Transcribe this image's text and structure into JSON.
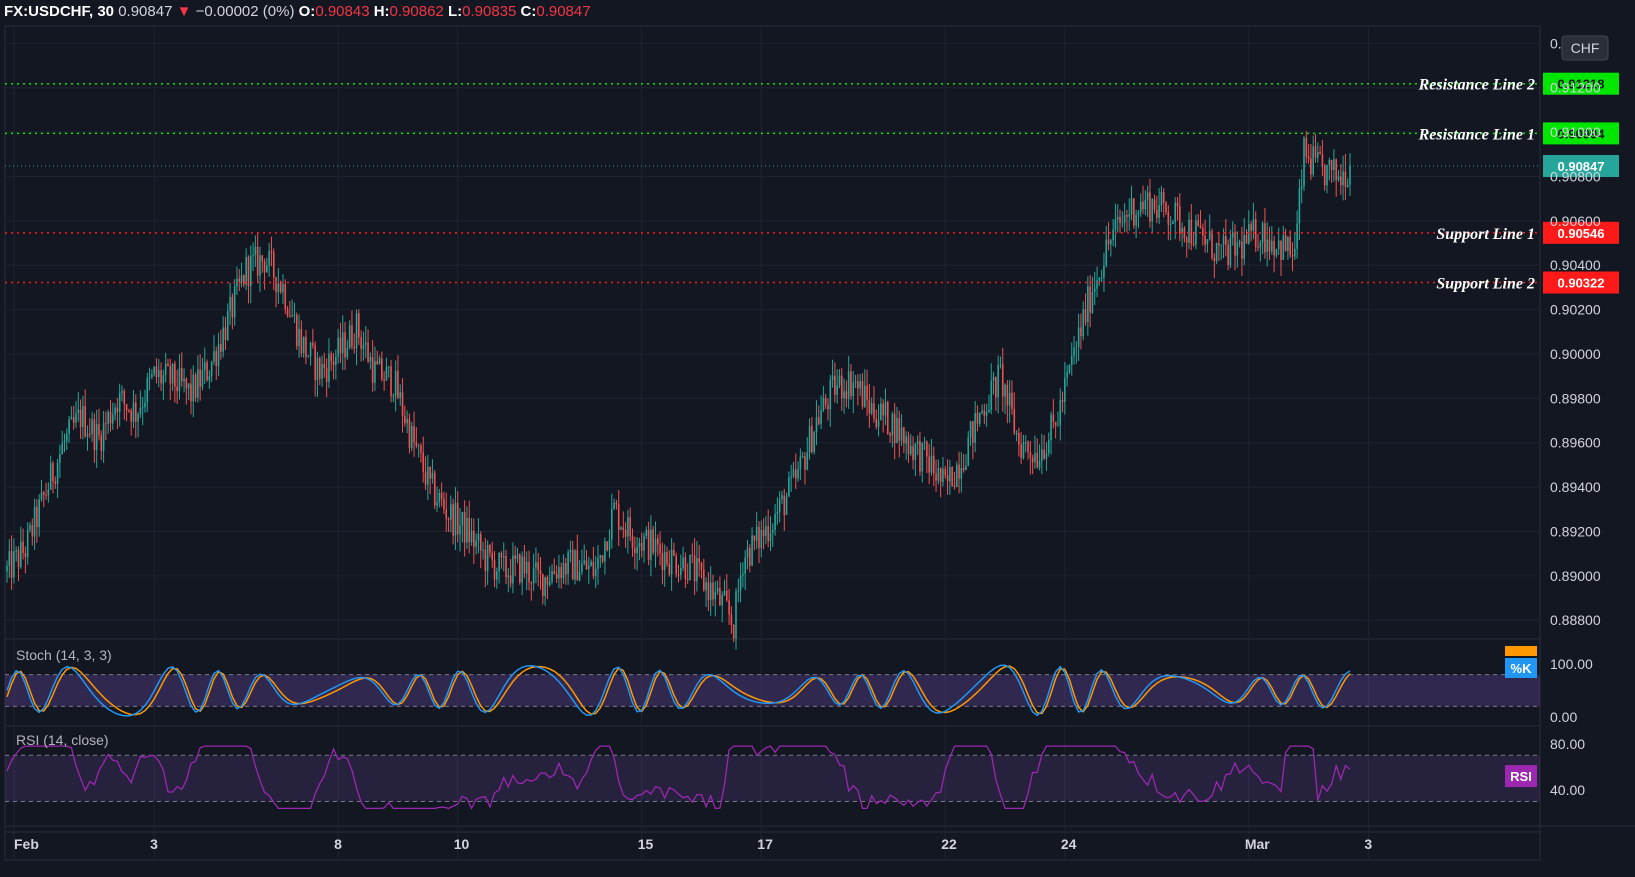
{
  "header": {
    "symbol": "FX:USDCHF, 30",
    "last": "0.90847",
    "arrow": "▼",
    "change": "−0.00002 (0%)",
    "o_label": "O:",
    "o": "0.90843",
    "h_label": "H:",
    "h": "0.90862",
    "l_label": "L:",
    "l": "0.90835",
    "c_label": "C:",
    "c": "0.90847"
  },
  "currency_badge": "CHF",
  "colors": {
    "up": "#26a69a",
    "down": "#ef5350",
    "resistance": "#00e600",
    "support": "#ff1a1a",
    "last": "#26a69a",
    "stoch_k": "#2196f3",
    "stoch_d": "#ff9800",
    "rsi": "#9c27b0"
  },
  "chart_data": [
    {
      "type": "candlestick",
      "title": "FX:USDCHF, 30",
      "y_ticks": [
        "0.91400",
        "0.91200",
        "0.91000",
        "0.90800",
        "0.90600",
        "0.90400",
        "0.90200",
        "0.90000",
        "0.89800",
        "0.89600",
        "0.89400",
        "0.89200",
        "0.89000",
        "0.88800"
      ],
      "ylim": [
        0.8872,
        0.9146
      ],
      "x_ticks": [
        "Feb",
        "3",
        "8",
        "10",
        "15",
        "17",
        "22",
        "24",
        "Mar",
        "3"
      ],
      "close_path": [
        [
          0,
          0.8902
        ],
        [
          2,
          0.8912
        ],
        [
          4,
          0.8935
        ],
        [
          6,
          0.8958
        ],
        [
          8,
          0.8972
        ],
        [
          10,
          0.8962
        ],
        [
          12,
          0.898
        ],
        [
          14,
          0.8974
        ],
        [
          16,
          0.899
        ],
        [
          18,
          0.8988
        ],
        [
          20,
          0.8982
        ],
        [
          22,
          0.8994
        ],
        [
          24,
          0.9015
        ],
        [
          26,
          0.9038
        ],
        [
          28,
          0.9043
        ],
        [
          30,
          0.903
        ],
        [
          32,
          0.9005
        ],
        [
          34,
          0.8992
        ],
        [
          36,
          0.9
        ],
        [
          38,
          0.9012
        ],
        [
          40,
          0.8992
        ],
        [
          42,
          0.8988
        ],
        [
          44,
          0.8962
        ],
        [
          46,
          0.894
        ],
        [
          48,
          0.8928
        ],
        [
          50,
          0.892
        ],
        [
          52,
          0.8908
        ],
        [
          54,
          0.8902
        ],
        [
          56,
          0.8904
        ],
        [
          58,
          0.8898
        ],
        [
          60,
          0.8904
        ],
        [
          62,
          0.8905
        ],
        [
          64,
          0.8902
        ],
        [
          66,
          0.893
        ],
        [
          68,
          0.8918
        ],
        [
          70,
          0.8914
        ],
        [
          72,
          0.8908
        ],
        [
          74,
          0.8905
        ],
        [
          76,
          0.8896
        ],
        [
          78,
          0.8886
        ],
        [
          79,
          0.8878
        ],
        [
          80,
          0.8908
        ],
        [
          82,
          0.8918
        ],
        [
          84,
          0.893
        ],
        [
          86,
          0.8945
        ],
        [
          88,
          0.897
        ],
        [
          90,
          0.8985
        ],
        [
          92,
          0.8988
        ],
        [
          94,
          0.8975
        ],
        [
          96,
          0.897
        ],
        [
          98,
          0.896
        ],
        [
          100,
          0.8952
        ],
        [
          102,
          0.894
        ],
        [
          104,
          0.8955
        ],
        [
          106,
          0.8975
        ],
        [
          108,
          0.899
        ],
        [
          110,
          0.896
        ],
        [
          112,
          0.8955
        ],
        [
          114,
          0.8968
        ],
        [
          116,
          0.9
        ],
        [
          118,
          0.903
        ],
        [
          120,
          0.9052
        ],
        [
          122,
          0.9065
        ],
        [
          124,
          0.9068
        ],
        [
          126,
          0.9065
        ],
        [
          128,
          0.9058
        ],
        [
          130,
          0.9052
        ],
        [
          132,
          0.9045
        ],
        [
          134,
          0.9048
        ],
        [
          136,
          0.9055
        ],
        [
          138,
          0.905
        ],
        [
          140,
          0.9045
        ],
        [
          141,
          0.909
        ],
        [
          143,
          0.9082
        ],
        [
          145,
          0.908
        ],
        [
          146,
          0.9085
        ]
      ],
      "levels": [
        {
          "name": "Resistance Line 2",
          "value": "0.91218",
          "kind": "resistance"
        },
        {
          "name": "Resistance Line 1",
          "value": "0.90994",
          "kind": "resistance"
        },
        {
          "name": "Support Line 1",
          "value": "0.90546",
          "kind": "support"
        },
        {
          "name": "Support Line 2",
          "value": "0.90322",
          "kind": "support"
        }
      ],
      "last_price": "0.90847"
    },
    {
      "type": "line",
      "title": "Stoch (14, 3, 3)",
      "y_ticks": [
        "100.00",
        "0.00"
      ],
      "ylim": [
        0,
        100
      ],
      "bands": [
        80,
        20
      ],
      "series": [
        {
          "name": "%K"
        },
        {
          "name": "%D"
        }
      ]
    },
    {
      "type": "line",
      "title": "RSI (14, close)",
      "y_ticks": [
        "80.00",
        "40.00"
      ],
      "bands": [
        70,
        30
      ],
      "series": [
        {
          "name": "RSI"
        }
      ]
    }
  ]
}
